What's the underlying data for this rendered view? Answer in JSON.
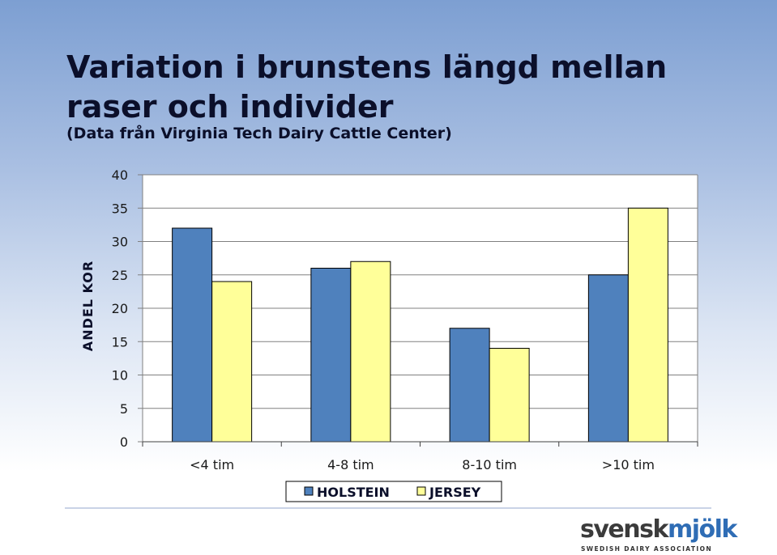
{
  "slide": {
    "title_line1": "Variation i brunstens längd mellan",
    "title_line2": "raser och individer",
    "subtitle": "(Data från Virginia Tech Dairy Cattle Center)"
  },
  "logo": {
    "main_part1": "svensk",
    "main_part2": "mjölk",
    "tagline": "SWEDISH DAIRY ASSOCIATION"
  },
  "colors": {
    "holstein": "#4f81bd",
    "jersey": "#ffff99",
    "plot_bg": "#ffffff",
    "grid": "#808080"
  },
  "chart_data": {
    "type": "bar",
    "categories": [
      "<4 tim",
      "4-8 tim",
      "8-10 tim",
      ">10 tim"
    ],
    "series": [
      {
        "name": "HOLSTEIN",
        "values": [
          32,
          26,
          17,
          25
        ]
      },
      {
        "name": "JERSEY",
        "values": [
          24,
          27,
          14,
          35
        ]
      }
    ],
    "ylabel": "ANDEL KOR",
    "ylim": [
      0,
      40
    ],
    "yticks": [
      0,
      5,
      10,
      15,
      20,
      25,
      30,
      35,
      40
    ],
    "grid": true,
    "legend": "bottom"
  }
}
